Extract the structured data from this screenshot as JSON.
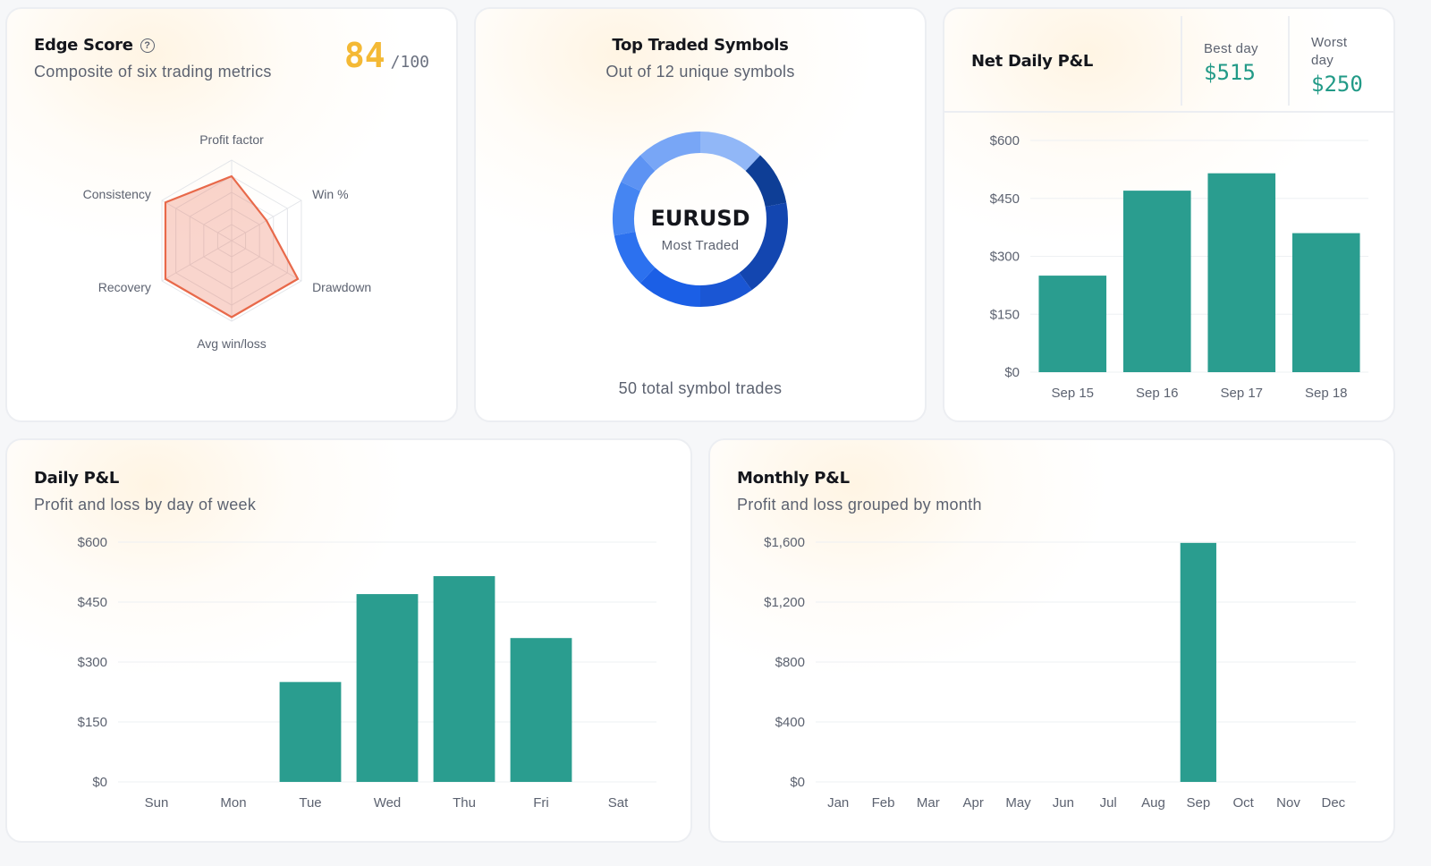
{
  "edge_score": {
    "title": "Edge Score",
    "subtitle": "Composite of six trading metrics",
    "score": "84",
    "score_max": "/100",
    "score_color": "#f4b935",
    "radar_color": "#e8694a",
    "chart_data": {
      "type": "radar",
      "axes": [
        "Profit factor",
        "Win %",
        "Drawdown",
        "Avg win/loss",
        "Recovery",
        "Consistency"
      ],
      "values": [
        0.8,
        0.5,
        0.95,
        0.95,
        0.95,
        0.95
      ],
      "max": 1
    }
  },
  "top_symbols": {
    "title": "Top Traded Symbols",
    "subtitle": "Out of 12 unique symbols",
    "center_label": "EURUSD",
    "center_sublabel": "Most Traded",
    "footer": "50 total symbol trades",
    "chart_data": {
      "type": "pie",
      "values": [
        6,
        5,
        9,
        5,
        6,
        5,
        5,
        3,
        6
      ],
      "colors": [
        "#91b7f7",
        "#0e3e96",
        "#1346b0",
        "#1a56d4",
        "#1b5fe6",
        "#2c71ef",
        "#4585f2",
        "#5d93f3",
        "#78a6f6"
      ]
    }
  },
  "net_daily": {
    "title": "Net Daily P&L",
    "best_label": "Best day",
    "best_value": "$515",
    "worst_label": "Worst day",
    "worst_value": "$250",
    "value_color": "#229a87",
    "chart_data": {
      "type": "bar",
      "categories": [
        "Sep 15",
        "Sep 16",
        "Sep 17",
        "Sep 18"
      ],
      "values": [
        250,
        470,
        515,
        360
      ],
      "ylim": [
        0,
        600
      ],
      "yticks": [
        0,
        150,
        300,
        450,
        600
      ],
      "ytick_labels": [
        "$0",
        "$150",
        "$300",
        "$450",
        "$600"
      ],
      "bar_color": "#2a9d8f"
    }
  },
  "daily_pnl": {
    "title": "Daily P&L",
    "subtitle": "Profit and loss by day of week",
    "chart_data": {
      "type": "bar",
      "categories": [
        "Sun",
        "Mon",
        "Tue",
        "Wed",
        "Thu",
        "Fri",
        "Sat"
      ],
      "values": [
        0,
        0,
        250,
        470,
        515,
        360,
        0
      ],
      "ylim": [
        0,
        600
      ],
      "yticks": [
        0,
        150,
        300,
        450,
        600
      ],
      "ytick_labels": [
        "$0",
        "$150",
        "$300",
        "$450",
        "$600"
      ],
      "bar_color": "#2a9d8f"
    }
  },
  "monthly_pnl": {
    "title": "Monthly P&L",
    "subtitle": "Profit and loss grouped by month",
    "chart_data": {
      "type": "bar",
      "categories": [
        "Jan",
        "Feb",
        "Mar",
        "Apr",
        "May",
        "Jun",
        "Jul",
        "Aug",
        "Sep",
        "Oct",
        "Nov",
        "Dec"
      ],
      "values": [
        0,
        0,
        0,
        0,
        0,
        0,
        0,
        0,
        1595,
        0,
        0,
        0
      ],
      "ylim": [
        0,
        1600
      ],
      "yticks": [
        0,
        400,
        800,
        1200,
        1600
      ],
      "ytick_labels": [
        "$0",
        "$400",
        "$800",
        "$1,200",
        "$1,600"
      ],
      "bar_color": "#2a9d8f"
    }
  }
}
